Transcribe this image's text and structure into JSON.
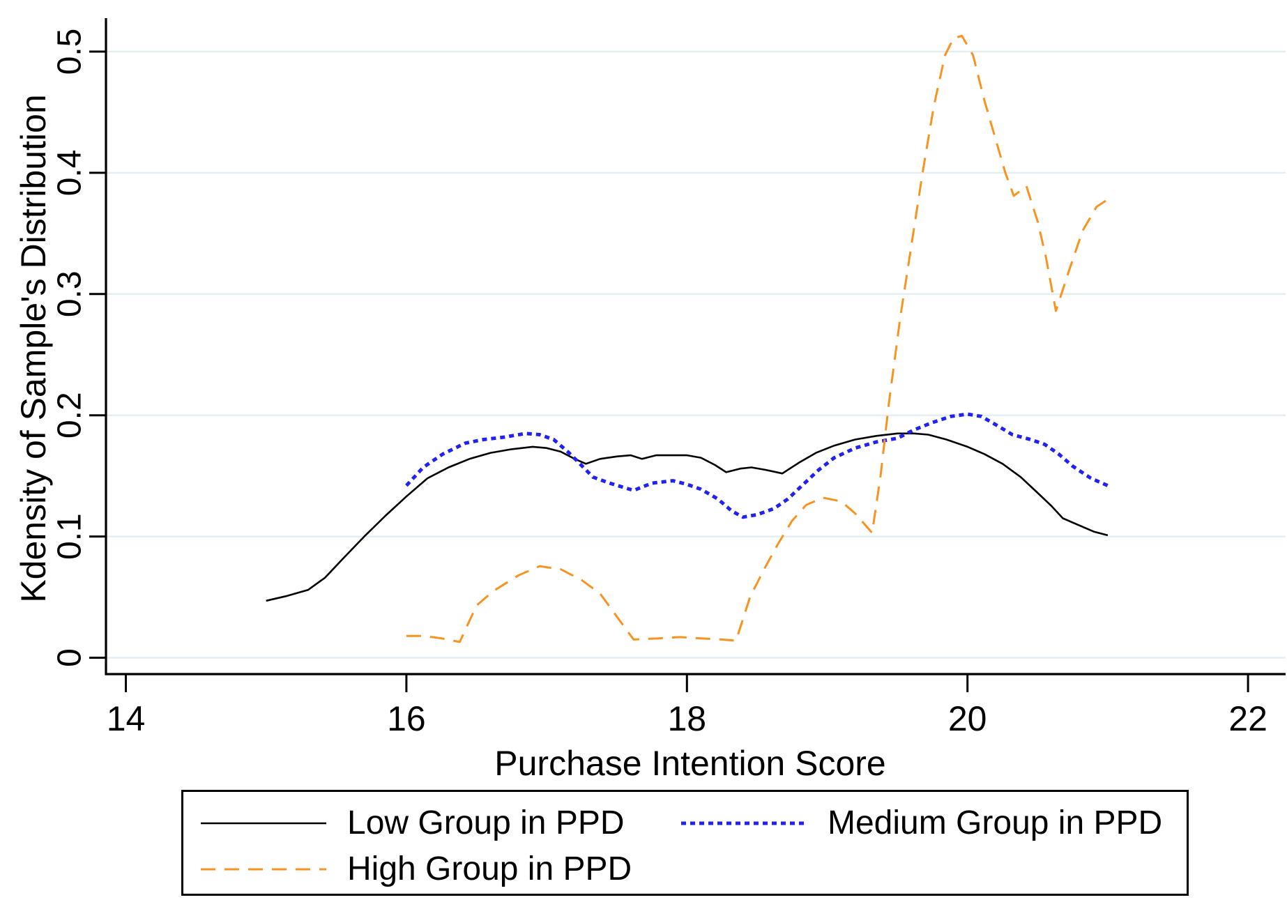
{
  "chart_data": {
    "type": "line",
    "title": "",
    "xlabel": "Purchase Intention Score",
    "ylabel": "Kdensity of Sample's Distribution",
    "xlim": [
      14,
      22
    ],
    "ylim": [
      0,
      0.52
    ],
    "x_ticks": [
      14,
      16,
      18,
      20,
      22
    ],
    "x_tick_labels": [
      "14",
      "16",
      "18",
      "20",
      "22"
    ],
    "y_ticks": [
      0,
      0.1,
      0.2,
      0.3,
      0.4,
      0.5
    ],
    "y_tick_labels": [
      "0",
      "0.1",
      "0.2",
      "0.3",
      "0.4",
      "0.5"
    ],
    "grid": "horizontal",
    "gridline_color": "#e2eff2",
    "axis_color": "#000000",
    "legend_position": "bottom-box",
    "series": [
      {
        "name": "Low Group in PPD",
        "color": "#000000",
        "style": "solid",
        "width": 2.6,
        "points": [
          [
            15.0,
            0.047
          ],
          [
            15.15,
            0.051
          ],
          [
            15.3,
            0.056
          ],
          [
            15.42,
            0.066
          ],
          [
            15.55,
            0.082
          ],
          [
            15.7,
            0.1
          ],
          [
            15.85,
            0.117
          ],
          [
            16.0,
            0.133
          ],
          [
            16.15,
            0.148
          ],
          [
            16.3,
            0.157
          ],
          [
            16.45,
            0.164
          ],
          [
            16.6,
            0.169
          ],
          [
            16.75,
            0.172
          ],
          [
            16.9,
            0.174
          ],
          [
            17.0,
            0.173
          ],
          [
            17.1,
            0.17
          ],
          [
            17.2,
            0.164
          ],
          [
            17.28,
            0.16
          ],
          [
            17.38,
            0.164
          ],
          [
            17.5,
            0.166
          ],
          [
            17.6,
            0.167
          ],
          [
            17.68,
            0.164
          ],
          [
            17.78,
            0.167
          ],
          [
            17.9,
            0.167
          ],
          [
            18.0,
            0.167
          ],
          [
            18.1,
            0.165
          ],
          [
            18.2,
            0.159
          ],
          [
            18.28,
            0.153
          ],
          [
            18.38,
            0.156
          ],
          [
            18.46,
            0.157
          ],
          [
            18.56,
            0.155
          ],
          [
            18.68,
            0.152
          ],
          [
            18.8,
            0.161
          ],
          [
            18.92,
            0.169
          ],
          [
            19.05,
            0.175
          ],
          [
            19.2,
            0.18
          ],
          [
            19.35,
            0.183
          ],
          [
            19.5,
            0.185
          ],
          [
            19.62,
            0.185
          ],
          [
            19.72,
            0.184
          ],
          [
            19.85,
            0.18
          ],
          [
            20.0,
            0.174
          ],
          [
            20.12,
            0.168
          ],
          [
            20.25,
            0.16
          ],
          [
            20.38,
            0.149
          ],
          [
            20.5,
            0.136
          ],
          [
            20.6,
            0.125
          ],
          [
            20.68,
            0.115
          ],
          [
            20.8,
            0.109
          ],
          [
            20.9,
            0.104
          ],
          [
            21.0,
            0.101
          ]
        ]
      },
      {
        "name": "Medium Group in PPD",
        "color": "#2121f3",
        "style": "dotted",
        "width": 5,
        "points": [
          [
            16.0,
            0.142
          ],
          [
            16.12,
            0.157
          ],
          [
            16.26,
            0.168
          ],
          [
            16.42,
            0.177
          ],
          [
            16.55,
            0.18
          ],
          [
            16.7,
            0.182
          ],
          [
            16.85,
            0.185
          ],
          [
            16.95,
            0.184
          ],
          [
            17.05,
            0.18
          ],
          [
            17.15,
            0.17
          ],
          [
            17.22,
            0.162
          ],
          [
            17.33,
            0.149
          ],
          [
            17.45,
            0.144
          ],
          [
            17.62,
            0.138
          ],
          [
            17.75,
            0.144
          ],
          [
            17.9,
            0.146
          ],
          [
            18.0,
            0.143
          ],
          [
            18.1,
            0.139
          ],
          [
            18.22,
            0.131
          ],
          [
            18.32,
            0.121
          ],
          [
            18.4,
            0.116
          ],
          [
            18.5,
            0.118
          ],
          [
            18.62,
            0.123
          ],
          [
            18.72,
            0.131
          ],
          [
            18.82,
            0.142
          ],
          [
            18.94,
            0.155
          ],
          [
            19.05,
            0.165
          ],
          [
            19.2,
            0.173
          ],
          [
            19.35,
            0.178
          ],
          [
            19.5,
            0.181
          ],
          [
            19.62,
            0.188
          ],
          [
            19.75,
            0.194
          ],
          [
            19.88,
            0.199
          ],
          [
            20.0,
            0.201
          ],
          [
            20.1,
            0.199
          ],
          [
            20.22,
            0.191
          ],
          [
            20.32,
            0.184
          ],
          [
            20.45,
            0.18
          ],
          [
            20.55,
            0.176
          ],
          [
            20.65,
            0.168
          ],
          [
            20.75,
            0.158
          ],
          [
            20.88,
            0.148
          ],
          [
            21.0,
            0.142
          ]
        ]
      },
      {
        "name": "High Group in PPD",
        "color": "#f8931f",
        "style": "dashed",
        "width": 3,
        "points": [
          [
            16.0,
            0.018
          ],
          [
            16.12,
            0.018
          ],
          [
            16.25,
            0.016
          ],
          [
            16.38,
            0.013
          ],
          [
            16.5,
            0.043
          ],
          [
            16.62,
            0.055
          ],
          [
            16.8,
            0.068
          ],
          [
            16.95,
            0.0755
          ],
          [
            17.1,
            0.073
          ],
          [
            17.25,
            0.064
          ],
          [
            17.38,
            0.053
          ],
          [
            17.5,
            0.034
          ],
          [
            17.62,
            0.015
          ],
          [
            17.8,
            0.016
          ],
          [
            17.95,
            0.017
          ],
          [
            18.1,
            0.016
          ],
          [
            18.25,
            0.015
          ],
          [
            18.35,
            0.014
          ],
          [
            18.45,
            0.05
          ],
          [
            18.55,
            0.073
          ],
          [
            18.65,
            0.094
          ],
          [
            18.75,
            0.113
          ],
          [
            18.85,
            0.126
          ],
          [
            18.97,
            0.132
          ],
          [
            19.1,
            0.129
          ],
          [
            19.2,
            0.119
          ],
          [
            19.32,
            0.103
          ],
          [
            19.38,
            0.15
          ],
          [
            19.44,
            0.21
          ],
          [
            19.52,
            0.28
          ],
          [
            19.6,
            0.34
          ],
          [
            19.68,
            0.4
          ],
          [
            19.76,
            0.455
          ],
          [
            19.84,
            0.497
          ],
          [
            19.9,
            0.511
          ],
          [
            19.96,
            0.513
          ],
          [
            20.04,
            0.497
          ],
          [
            20.12,
            0.46
          ],
          [
            20.2,
            0.428
          ],
          [
            20.27,
            0.4
          ],
          [
            20.33,
            0.381
          ],
          [
            20.42,
            0.389
          ],
          [
            20.5,
            0.36
          ],
          [
            20.56,
            0.33
          ],
          [
            20.63,
            0.286
          ],
          [
            20.72,
            0.318
          ],
          [
            20.82,
            0.352
          ],
          [
            20.92,
            0.372
          ],
          [
            21.0,
            0.378
          ]
        ]
      }
    ]
  }
}
